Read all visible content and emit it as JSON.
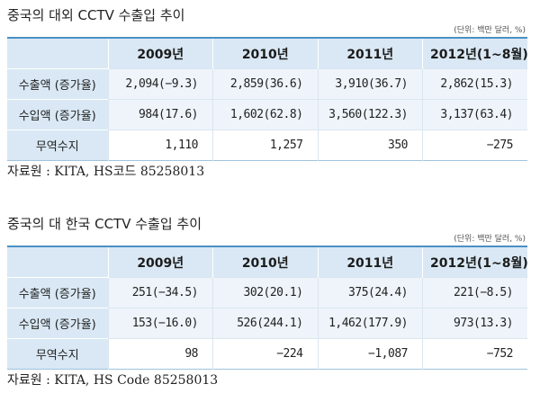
{
  "tables": [
    {
      "title": "중국의 대외 CCTV 수출입 추이",
      "unit": "(단위: 백만 달러, %)",
      "columns": [
        "",
        "2009년",
        "2010년",
        "2011년",
        "2012년(1~8월)"
      ],
      "rows": [
        {
          "label": "수출액 (증가율)",
          "values": [
            "2,094(−9.3)",
            "2,859(36.6)",
            "3,910(36.7)",
            "2,862(15.3)"
          ]
        },
        {
          "label": "수입액 (증가율)",
          "values": [
            "984(17.6)",
            "1,602(62.8)",
            "3,560(122.3)",
            "3,137(63.4)"
          ]
        },
        {
          "label": "무역수지",
          "values": [
            "1,110",
            "1,257",
            "350",
            "−275"
          ]
        }
      ],
      "source": "자료원 : KITA, HS코드 85258013"
    },
    {
      "title": "중국의 대 한국 CCTV 수출입 추이",
      "unit": "(단위: 백만 달러, %)",
      "columns": [
        "",
        "2009년",
        "2010년",
        "2011년",
        "2012년(1~8월)"
      ],
      "rows": [
        {
          "label": "수출액 (증가율)",
          "values": [
            "251(−34.5)",
            "302(20.1)",
            "375(24.4)",
            "221(−8.5)"
          ]
        },
        {
          "label": "수입액 (증가율)",
          "values": [
            "153(−16.0)",
            "526(244.1)",
            "1,462(177.9)",
            "973(13.3)"
          ]
        },
        {
          "label": "무역수지",
          "values": [
            "98",
            "−224",
            "−1,087",
            "−752"
          ]
        }
      ],
      "source": "자료원 : KITA, HS Code 85258013"
    }
  ],
  "colors": {
    "header_bg": "#d9e8f4",
    "shaded_row_bg": "#eef4fa",
    "accent_line": "#4a8fc4"
  }
}
